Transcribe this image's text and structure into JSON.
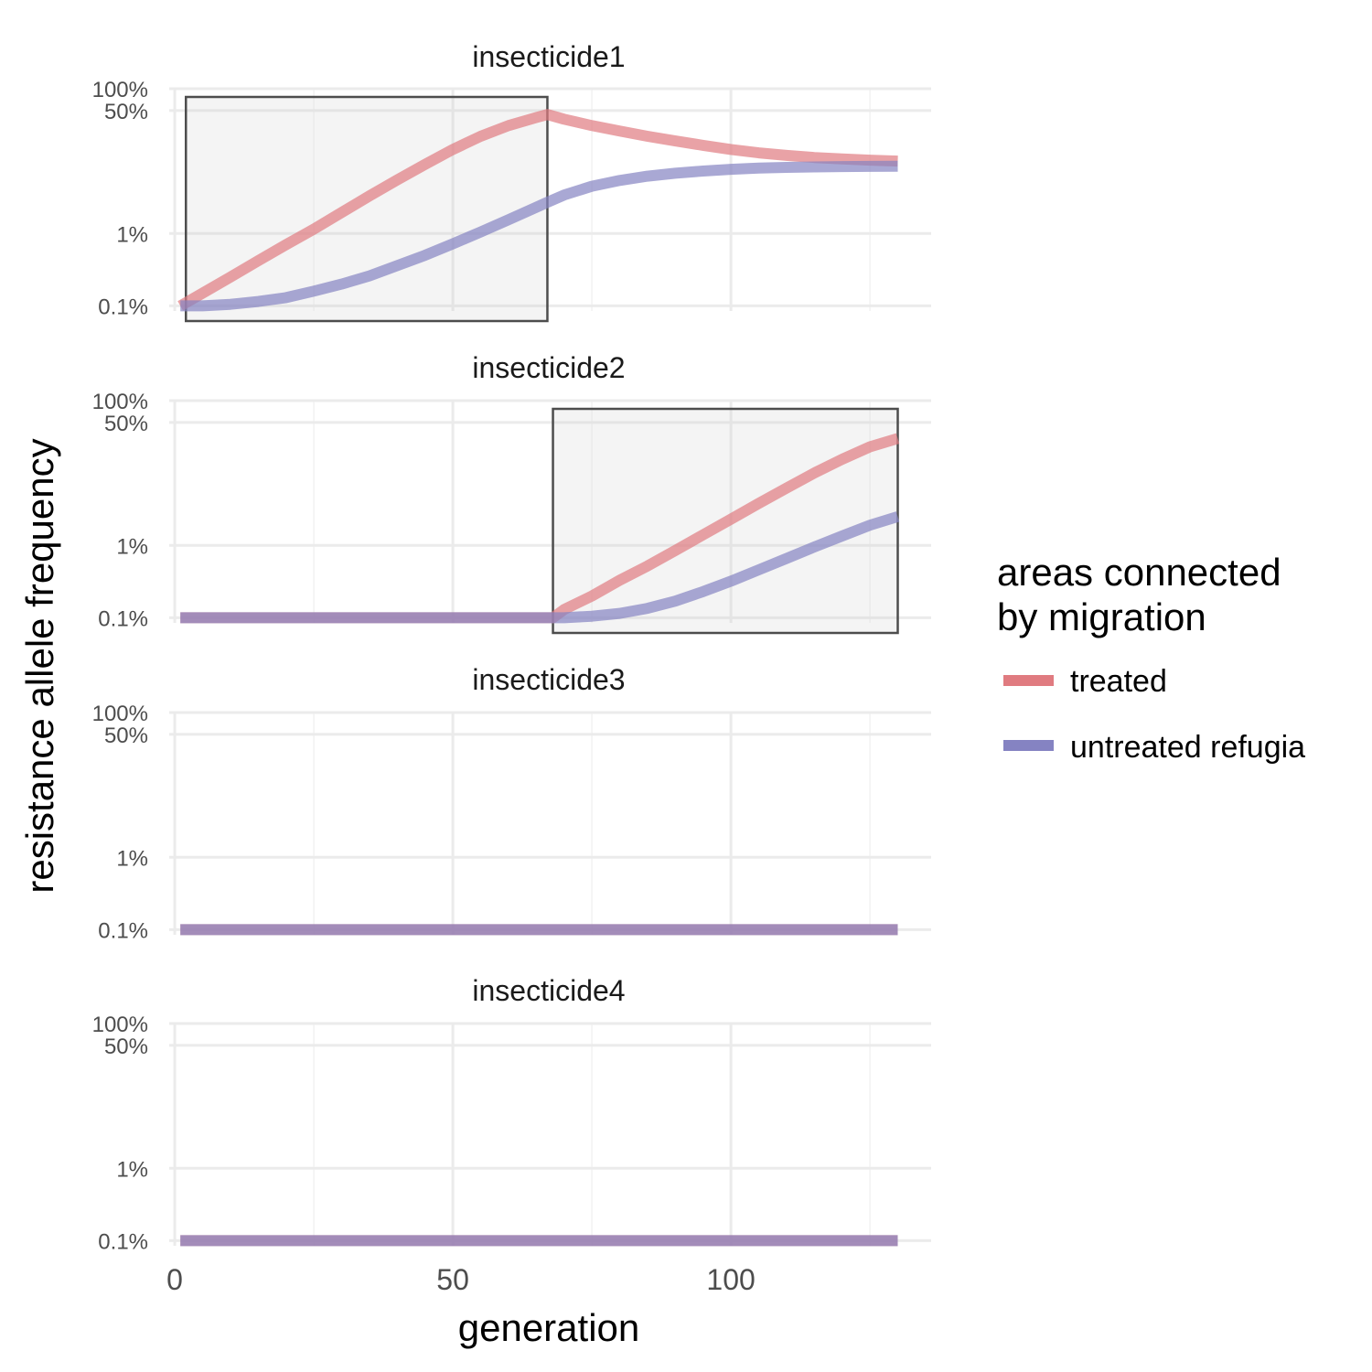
{
  "chart_data": {
    "type": "line",
    "xlabel": "generation",
    "ylabel": "resistance allele frequency",
    "xlim": [
      -1,
      136
    ],
    "x_ticks": [
      0,
      50,
      100
    ],
    "x_tick_labels": [
      "0",
      "50",
      "100"
    ],
    "y_scale": "log",
    "y_ticks": [
      0.1,
      1,
      50,
      100
    ],
    "y_tick_labels": [
      "0.1%",
      "1%",
      "50%",
      "100%"
    ],
    "ylim": [
      0.085,
      100
    ],
    "grid": true,
    "legend": {
      "title_line1": "areas connected",
      "title_line2": "by migration",
      "placement": "right",
      "items": [
        {
          "label": "treated",
          "color": "#e07b80"
        },
        {
          "label": "untreated refugia",
          "color": "#8583c2"
        }
      ]
    },
    "overlap_color": "#6b3a78",
    "panels": [
      {
        "title": "insecticide1",
        "treatment_window": [
          2,
          67
        ],
        "series": [
          {
            "name": "treated",
            "x": [
              1,
              5,
              10,
              15,
              20,
              25,
              30,
              35,
              40,
              45,
              50,
              55,
              60,
              65,
              67,
              70,
              75,
              80,
              85,
              90,
              95,
              100,
              105,
              110,
              115,
              120,
              125,
              130
            ],
            "y": [
              0.1,
              0.15,
              0.25,
              0.42,
              0.7,
              1.15,
              1.95,
              3.3,
              5.5,
              9,
              14.5,
              22,
              31,
              40,
              44,
              38,
              31,
              26,
              22,
              19,
              16.5,
              14.5,
              13,
              12,
              11.2,
              10.7,
              10.3,
              10
            ]
          },
          {
            "name": "untreated refugia",
            "x": [
              1,
              5,
              10,
              15,
              20,
              25,
              30,
              35,
              40,
              45,
              50,
              55,
              60,
              65,
              67,
              70,
              75,
              80,
              85,
              90,
              95,
              100,
              105,
              110,
              115,
              120,
              125,
              130
            ],
            "y": [
              0.1,
              0.1,
              0.105,
              0.115,
              0.13,
              0.16,
              0.2,
              0.26,
              0.36,
              0.5,
              0.72,
              1.05,
              1.55,
              2.3,
              2.7,
              3.4,
              4.5,
              5.4,
              6.2,
              6.8,
              7.3,
              7.7,
              8,
              8.2,
              8.3,
              8.4,
              8.45,
              8.5
            ]
          }
        ]
      },
      {
        "title": "insecticide2",
        "treatment_window": [
          68,
          130
        ],
        "series": [
          {
            "name": "treated",
            "x": [
              1,
              68,
              70,
              75,
              80,
              85,
              90,
              95,
              100,
              105,
              110,
              115,
              120,
              125,
              130
            ],
            "y": [
              0.1,
              0.1,
              0.13,
              0.2,
              0.33,
              0.52,
              0.85,
              1.4,
              2.3,
              3.8,
              6.2,
              10,
              15.5,
              23,
              30
            ]
          },
          {
            "name": "untreated refugia",
            "x": [
              1,
              68,
              70,
              75,
              80,
              85,
              90,
              95,
              100,
              105,
              110,
              115,
              120,
              125,
              130
            ],
            "y": [
              0.1,
              0.1,
              0.1,
              0.105,
              0.115,
              0.135,
              0.17,
              0.23,
              0.32,
              0.46,
              0.66,
              0.95,
              1.35,
              1.9,
              2.5
            ]
          }
        ]
      },
      {
        "title": "insecticide3",
        "treatment_window": null,
        "series": [
          {
            "name": "treated",
            "x": [
              1,
              130
            ],
            "y": [
              0.1,
              0.1
            ]
          },
          {
            "name": "untreated refugia",
            "x": [
              1,
              130
            ],
            "y": [
              0.1,
              0.1
            ]
          }
        ]
      },
      {
        "title": "insecticide4",
        "treatment_window": null,
        "series": [
          {
            "name": "treated",
            "x": [
              1,
              130
            ],
            "y": [
              0.1,
              0.1
            ]
          },
          {
            "name": "untreated refugia",
            "x": [
              1,
              130
            ],
            "y": [
              0.1,
              0.1
            ]
          }
        ]
      }
    ]
  }
}
